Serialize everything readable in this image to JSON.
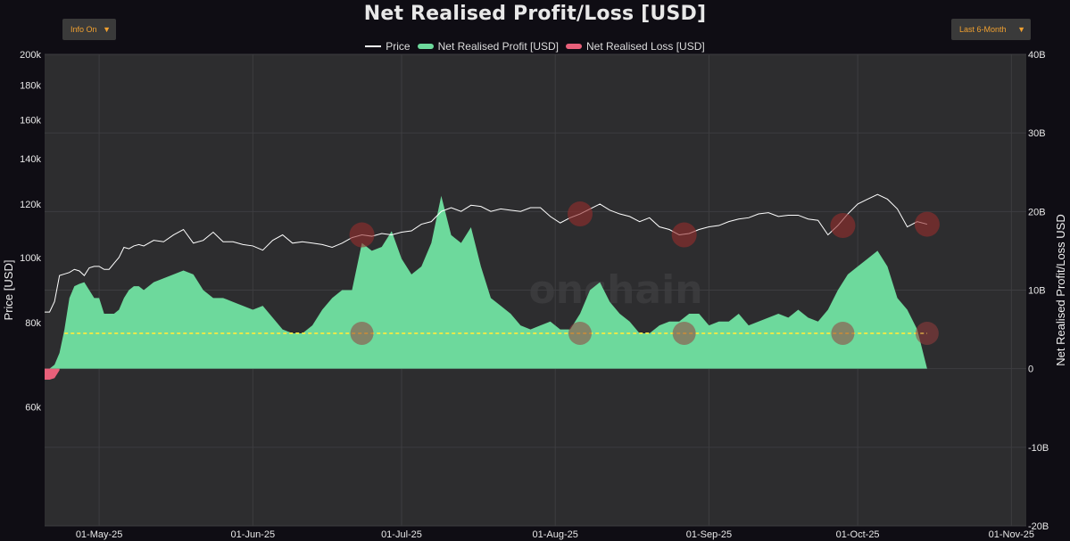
{
  "title": "Net Realised Profit/Loss [USD]",
  "controls": {
    "info_dropdown": "Info On",
    "range_dropdown": "Last 6-Month"
  },
  "watermark": "onchain",
  "colors": {
    "background": "#0f0d14",
    "plot_bg": "#2d2d2f",
    "profit": "#6dd99c",
    "loss": "#e8607a",
    "price": "#ffffff",
    "dotted": "#e8e84a",
    "marker": "#8b3b3b"
  },
  "chart_data": {
    "type": "area",
    "title": "Net Realised Profit/Loss [USD]",
    "legend": [
      "Price",
      "Net Realised Profit [USD]",
      "Net Realised Loss [USD]"
    ],
    "legend_position": "top-center",
    "x_tick_labels": [
      "01-May-25",
      "01-Jun-25",
      "01-Jul-25",
      "01-Aug-25",
      "01-Sep-25",
      "01-Oct-25",
      "01-Nov-25"
    ],
    "x_range_days": [
      0,
      198
    ],
    "x_tick_days": [
      11,
      42,
      72,
      103,
      134,
      164,
      195
    ],
    "left_axis": {
      "label": "Price [USD]",
      "scale": "log",
      "range": [
        40000,
        200000
      ],
      "ticks": [
        60000,
        80000,
        100000,
        120000,
        140000,
        160000,
        180000,
        200000
      ],
      "tick_labels": [
        "60k",
        "80k",
        "100k",
        "120k",
        "140k",
        "160k",
        "180k",
        "200k"
      ]
    },
    "right_axis": {
      "label": "Net Realised Profit/Loss USD",
      "range": [
        -20,
        40
      ],
      "unit": "B",
      "ticks": [
        -20,
        -10,
        0,
        10,
        20,
        30,
        40
      ],
      "tick_labels": [
        "-20B",
        "-10B",
        "0",
        "10B",
        "20B",
        "30B",
        "40B"
      ]
    },
    "price": {
      "name": "Price",
      "x": [
        0,
        1,
        2,
        3,
        4,
        5,
        6,
        7,
        8,
        9,
        10,
        11,
        12,
        13,
        14,
        15,
        16,
        17,
        18,
        19,
        20,
        22,
        24,
        26,
        28,
        30,
        32,
        34,
        36,
        38,
        40,
        42,
        44,
        46,
        48,
        50,
        52,
        54,
        56,
        58,
        60,
        62,
        64,
        66,
        68,
        70,
        72,
        74,
        76,
        78,
        80,
        82,
        84,
        86,
        88,
        90,
        92,
        94,
        96,
        98,
        100,
        102,
        104,
        106,
        108,
        110,
        112,
        114,
        116,
        118,
        120,
        122,
        124,
        126,
        128,
        130,
        132,
        134,
        136,
        138,
        140,
        142,
        144,
        146,
        148,
        150,
        152,
        154,
        156,
        158,
        160,
        162,
        164,
        166,
        168,
        170,
        172,
        174,
        176,
        178
      ],
      "y": [
        83000,
        83000,
        86000,
        94000,
        94500,
        95000,
        96000,
        95500,
        94000,
        96500,
        97000,
        97000,
        96000,
        96000,
        98000,
        100000,
        103500,
        103000,
        104000,
        104500,
        104000,
        106000,
        105500,
        108000,
        110000,
        105000,
        106000,
        109000,
        105500,
        105500,
        104500,
        104000,
        102500,
        106000,
        108000,
        105000,
        105500,
        105000,
        104500,
        103500,
        105000,
        107000,
        108000,
        107500,
        108500,
        108000,
        109000,
        109500,
        112000,
        113000,
        117000,
        118500,
        117000,
        119500,
        119000,
        117000,
        118000,
        117500,
        117000,
        118500,
        118500,
        115000,
        112500,
        114500,
        116000,
        118000,
        120000,
        117500,
        116000,
        115000,
        113000,
        114500,
        111000,
        110000,
        108000,
        108500,
        110000,
        111000,
        111500,
        113000,
        114000,
        114500,
        116000,
        116500,
        115000,
        115500,
        115500,
        114000,
        113500,
        108000,
        111500,
        116000,
        120000,
        122000,
        124000,
        122000,
        118000,
        111000,
        113000,
        112000
      ]
    },
    "net_realised_profit_billion": {
      "name": "Net Realised Profit [USD]",
      "x": [
        0,
        1,
        2,
        3,
        4,
        5,
        6,
        7,
        8,
        9,
        10,
        11,
        12,
        13,
        14,
        15,
        16,
        17,
        18,
        19,
        20,
        22,
        24,
        26,
        28,
        30,
        32,
        34,
        36,
        38,
        40,
        42,
        44,
        46,
        48,
        50,
        52,
        54,
        56,
        58,
        60,
        62,
        64,
        66,
        68,
        70,
        72,
        74,
        76,
        78,
        80,
        82,
        84,
        86,
        88,
        90,
        92,
        94,
        96,
        98,
        100,
        102,
        104,
        106,
        108,
        110,
        112,
        114,
        116,
        118,
        120,
        122,
        124,
        126,
        128,
        130,
        132,
        134,
        136,
        138,
        140,
        142,
        144,
        146,
        148,
        150,
        152,
        154,
        156,
        158,
        160,
        162,
        164,
        166,
        168,
        170,
        172,
        174,
        176,
        178
      ],
      "y": [
        0,
        0,
        0.5,
        2,
        5,
        9,
        10.5,
        10.8,
        11,
        10,
        9,
        9,
        7,
        7,
        7,
        7.5,
        9,
        10,
        10.5,
        10.5,
        10,
        11,
        11.5,
        12,
        12.5,
        12,
        10,
        9,
        9,
        8.5,
        8,
        7.5,
        8,
        6.5,
        5,
        4.5,
        4.5,
        5.5,
        7.5,
        9,
        10,
        10,
        16,
        15,
        15.5,
        17.5,
        14,
        12,
        13,
        16,
        22,
        17,
        16,
        18,
        13,
        9,
        8,
        7,
        5.5,
        5,
        5.5,
        6,
        5,
        5,
        7,
        10,
        11,
        8.5,
        7,
        6,
        4.5,
        4.5,
        5.5,
        6,
        6,
        7,
        7,
        5.5,
        6,
        6,
        7,
        5.5,
        6,
        6.5,
        7,
        6.5,
        7.5,
        6.5,
        6,
        7.5,
        10,
        12,
        13,
        14,
        15,
        13,
        9,
        7.5,
        5,
        0
      ]
    },
    "net_realised_loss_billion": {
      "name": "Net Realised Loss [USD]",
      "x": [
        0,
        1,
        2,
        3
      ],
      "y": [
        -1.4,
        -1.4,
        -1.2,
        -0.2
      ]
    },
    "annotations": {
      "dotted_line_value_billion": 4.5,
      "low_marker_days": [
        64,
        108,
        129,
        161,
        178
      ],
      "price_marker_days": [
        64,
        108,
        129,
        161,
        178
      ]
    }
  }
}
